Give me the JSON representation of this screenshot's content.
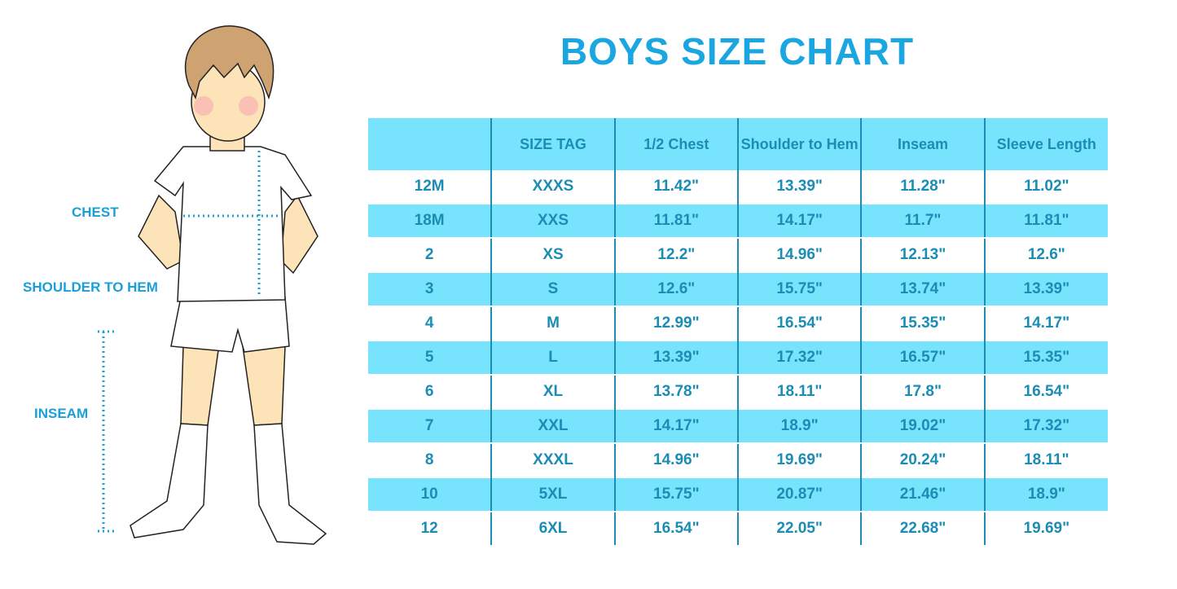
{
  "title": "BOYS SIZE CHART",
  "figure_labels": {
    "chest": "CHEST",
    "shoulder_to_hem": "SHOULDER TO HEM",
    "inseam": "INSEAM"
  },
  "colors": {
    "accent": "#1aa6e0",
    "row_highlight": "#78e3fd",
    "text": "#1b8db5"
  },
  "table": {
    "headers": [
      "",
      "SIZE TAG",
      "1/2 Chest",
      "Shoulder to Hem",
      "Inseam",
      "Sleeve Length"
    ],
    "rows": [
      [
        "12M",
        "XXXS",
        "11.42\"",
        "13.39\"",
        "11.28\"",
        "11.02\""
      ],
      [
        "18M",
        "XXS",
        "11.81\"",
        "14.17\"",
        "11.7\"",
        "11.81\""
      ],
      [
        "2",
        "XS",
        "12.2\"",
        "14.96\"",
        "12.13\"",
        "12.6\""
      ],
      [
        "3",
        "S",
        "12.6\"",
        "15.75\"",
        "13.74\"",
        "13.39\""
      ],
      [
        "4",
        "M",
        "12.99\"",
        "16.54\"",
        "15.35\"",
        "14.17\""
      ],
      [
        "5",
        "L",
        "13.39\"",
        "17.32\"",
        "16.57\"",
        "15.35\""
      ],
      [
        "6",
        "XL",
        "13.78\"",
        "18.11\"",
        "17.8\"",
        "16.54\""
      ],
      [
        "7",
        "XXL",
        "14.17\"",
        "18.9\"",
        "19.02\"",
        "17.32\""
      ],
      [
        "8",
        "XXXL",
        "14.96\"",
        "19.69\"",
        "20.24\"",
        "18.11\""
      ],
      [
        "10",
        "5XL",
        "15.75\"",
        "20.87\"",
        "21.46\"",
        "18.9\""
      ],
      [
        "12",
        "6XL",
        "16.54\"",
        "22.05\"",
        "22.68\"",
        "19.69\""
      ]
    ]
  }
}
